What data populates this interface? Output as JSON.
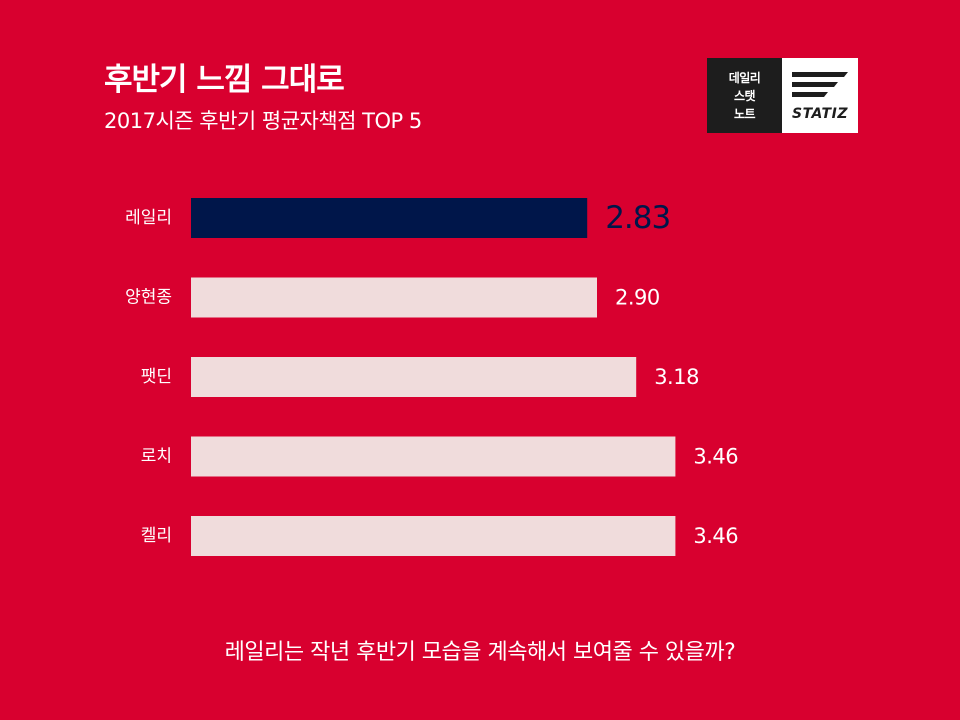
{
  "header": {
    "title": "후반기 느낌 그대로",
    "subtitle": "2017시즌 후반기 평균자책점 TOP 5"
  },
  "logo": {
    "line1": "데일리",
    "line2": "스탯",
    "line3": "노트",
    "brand": "STATIZ",
    "icon": "statiz-stripes-icon"
  },
  "colors": {
    "background": "#d8002f",
    "highlight_bar": "#00164a",
    "bar": "#f0dcdc",
    "highlight_value": "#00164a",
    "value": "#ffffff"
  },
  "chart_data": {
    "type": "bar",
    "orientation": "horizontal",
    "categories": [
      "레일리",
      "양현종",
      "팻딘",
      "로치",
      "켈리"
    ],
    "values": [
      2.83,
      2.9,
      3.18,
      3.46,
      3.46
    ],
    "value_labels": [
      "2.83",
      "2.90",
      "3.18",
      "3.46",
      "3.46"
    ],
    "highlight_index": 0,
    "legend": "none",
    "grid": false
  },
  "footer": {
    "caption": "레일리는 작년 후반기 모습을 계속해서 보여줄 수 있을까?"
  }
}
